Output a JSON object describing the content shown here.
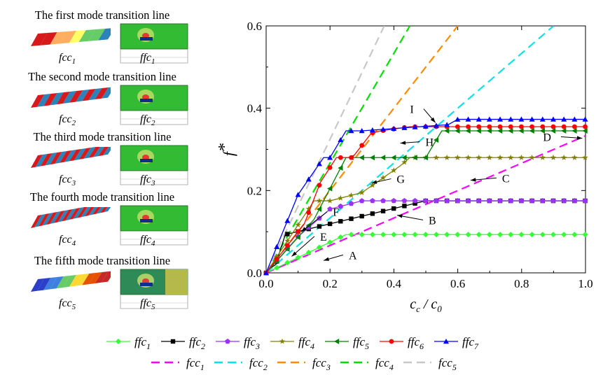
{
  "mode_panels": [
    {
      "title": "The first mode transition line",
      "fcc_label": "fcc",
      "fcc_sub": "1",
      "ffc_label": "ffc",
      "ffc_sub": "1"
    },
    {
      "title": "The second mode transition line",
      "fcc_label": "fcc",
      "fcc_sub": "2",
      "ffc_label": "ffc",
      "ffc_sub": "2"
    },
    {
      "title": "The third mode transition line",
      "fcc_label": "fcc",
      "fcc_sub": "3",
      "ffc_label": "ffc",
      "ffc_sub": "3"
    },
    {
      "title": "The fourth mode transition line",
      "fcc_label": "fcc",
      "fcc_sub": "4",
      "ffc_label": "ffc",
      "ffc_sub": "4"
    },
    {
      "title": "The fifth mode transition line",
      "fcc_label": "fcc",
      "fcc_sub": "5",
      "ffc_label": "ffc",
      "ffc_sub": "5"
    }
  ],
  "chart_data": {
    "type": "line",
    "title": "",
    "xlabel": "c_c / c_0",
    "ylabel": "f*",
    "xlim": [
      0,
      1.0
    ],
    "ylim": [
      0,
      0.6
    ],
    "xticks": [
      "0.0",
      "0.2",
      "0.4",
      "0.6",
      "0.8",
      "1.0"
    ],
    "yticks": [
      "0.0",
      "0.2",
      "0.4",
      "0.6"
    ],
    "grid": false,
    "legend_placement": "bottom",
    "series": [
      {
        "name": "ffc",
        "sub": "1",
        "style": "solid",
        "marker": "diamond",
        "color": "#33ff33",
        "x": [
          0,
          0.25,
          1.0
        ],
        "y": [
          0,
          0.093,
          0.093
        ]
      },
      {
        "name": "ffc",
        "sub": "2",
        "style": "solid",
        "marker": "square",
        "color": "#000000",
        "x": [
          0,
          0.01,
          0.03,
          0.06,
          0.5,
          1.0
        ],
        "y": [
          0,
          0.01,
          0.02,
          0.093,
          0.175,
          0.175
        ]
      },
      {
        "name": "ffc",
        "sub": "3",
        "style": "solid",
        "marker": "pentagon",
        "color": "#9b30ff",
        "x": [
          0,
          0.1,
          0.2,
          0.3,
          0.4,
          0.5,
          0.6,
          0.7,
          0.8,
          0.9,
          1.0
        ],
        "y": [
          0,
          0.088,
          0.155,
          0.175,
          0.175,
          0.175,
          0.175,
          0.175,
          0.175,
          0.175,
          0.175
        ]
      },
      {
        "name": "ffc",
        "sub": "4",
        "style": "solid",
        "marker": "star",
        "color": "#808000",
        "x": [
          0,
          0.15,
          0.2,
          0.3,
          0.42,
          0.45,
          1.0
        ],
        "y": [
          0,
          0.175,
          0.175,
          0.195,
          0.26,
          0.28,
          0.28
        ]
      },
      {
        "name": "ffc",
        "sub": "5",
        "style": "solid",
        "marker": "triangle-left",
        "color": "#008000",
        "x": [
          0,
          0.15,
          0.25,
          0.5,
          0.55,
          1.0
        ],
        "y": [
          0,
          0.13,
          0.28,
          0.28,
          0.345,
          0.345
        ]
      },
      {
        "name": "ffc",
        "sub": "6",
        "style": "solid",
        "marker": "circle",
        "color": "#ff0000",
        "x": [
          0,
          0.12,
          0.17,
          0.22,
          0.27,
          0.33,
          0.36,
          0.45,
          1.0
        ],
        "y": [
          0,
          0.12,
          0.22,
          0.28,
          0.28,
          0.34,
          0.345,
          0.355,
          0.355
        ]
      },
      {
        "name": "ffc",
        "sub": "7",
        "style": "solid",
        "marker": "triangle-up",
        "color": "#0000ff",
        "x": [
          0,
          0.1,
          0.18,
          0.2,
          0.25,
          0.3,
          0.57,
          0.6,
          1.0
        ],
        "y": [
          0,
          0.19,
          0.28,
          0.28,
          0.345,
          0.345,
          0.36,
          0.373,
          0.373
        ]
      },
      {
        "name": "fcc",
        "sub": "1",
        "style": "dashed",
        "marker": "",
        "color": "#ff00ff",
        "x": [
          0,
          1.0
        ],
        "y": [
          0,
          0.333
        ]
      },
      {
        "name": "fcc",
        "sub": "2",
        "style": "dashed",
        "marker": "",
        "color": "#00e5ee",
        "x": [
          0,
          0.9
        ],
        "y": [
          0,
          0.6
        ]
      },
      {
        "name": "fcc",
        "sub": "3",
        "style": "dashed",
        "marker": "",
        "color": "#ff8c00",
        "x": [
          0,
          0.6
        ],
        "y": [
          0,
          0.6
        ]
      },
      {
        "name": "fcc",
        "sub": "4",
        "style": "dashed",
        "marker": "",
        "color": "#00e000",
        "x": [
          0,
          0.45
        ],
        "y": [
          0,
          0.6
        ]
      },
      {
        "name": "fcc",
        "sub": "5",
        "style": "dashed",
        "marker": "",
        "color": "#c8c8c8",
        "x": [
          0,
          0.37
        ],
        "y": [
          0,
          0.6
        ]
      }
    ],
    "annotations": [
      {
        "text": "A",
        "x": 0.25,
        "y": 0.035,
        "arrow_to": [
          0.18,
          0.03
        ]
      },
      {
        "text": "B",
        "x": 0.5,
        "y": 0.12,
        "arrow_to": [
          0.41,
          0.14
        ]
      },
      {
        "text": "C",
        "x": 0.73,
        "y": 0.222,
        "arrow_to": [
          0.64,
          0.225
        ]
      },
      {
        "text": "D",
        "x": 0.91,
        "y": 0.322,
        "arrow_to": [
          0.99,
          0.327
        ]
      },
      {
        "text": "E",
        "x": 0.16,
        "y": 0.08,
        "arrow_to": [
          0.08,
          0.04
        ]
      },
      {
        "text": "F",
        "x": 0.2,
        "y": 0.14,
        "arrow_to": [
          0.11,
          0.1
        ]
      },
      {
        "text": "G",
        "x": 0.4,
        "y": 0.22,
        "arrow_to": [
          0.33,
          0.218
        ]
      },
      {
        "text": "H",
        "x": 0.49,
        "y": 0.31,
        "arrow_to": [
          0.42,
          0.315
        ]
      },
      {
        "text": "I",
        "x": 0.48,
        "y": 0.39,
        "arrow_to": [
          0.53,
          0.365
        ]
      }
    ]
  }
}
